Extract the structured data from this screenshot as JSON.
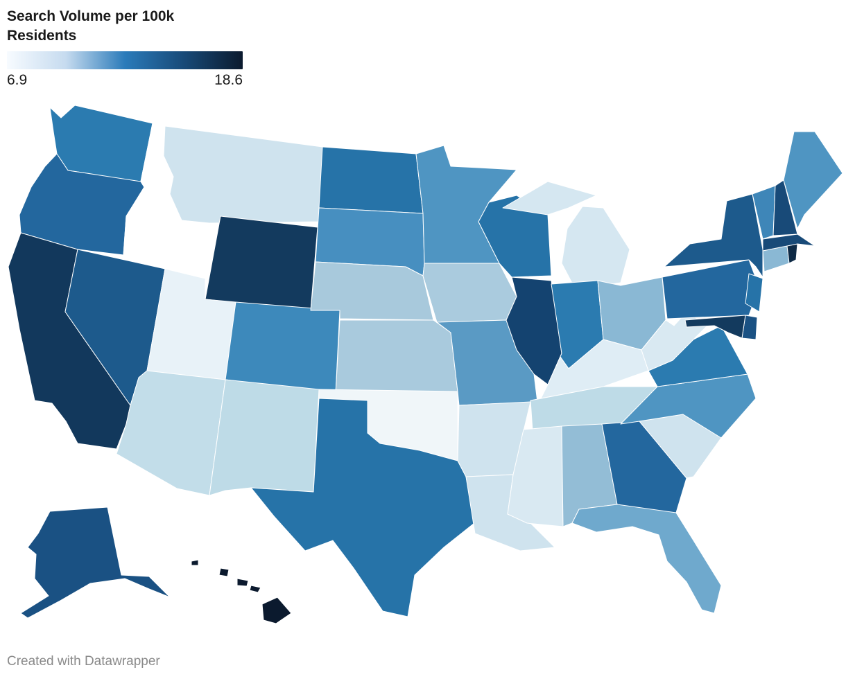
{
  "legend": {
    "title": "Search Volume per 100k Residents",
    "min_label": "6.9",
    "max_label": "18.6",
    "gradient": [
      "#f7fbff",
      "#c6dbef",
      "#2b7bba",
      "#184a78",
      "#0b1a2e"
    ]
  },
  "credit": "Created with Datawrapper",
  "colors": {
    "WA": "#2b7bb0",
    "OR": "#23679e",
    "CA": "#12385c",
    "ID": "#ffffff",
    "NV": "#1d5a8c",
    "MT": "#cfe3ee",
    "WY": "#133a5e",
    "UT": "#e8f2f8",
    "AZ": "#c2dde9",
    "CO": "#3d89bb",
    "NM": "#bedbe7",
    "ND": "#2673a8",
    "SD": "#478fc0",
    "NE": "#a8c9dc",
    "KS": "#a9cadd",
    "OK": "#f0f6f9",
    "TX": "#2673a8",
    "MN": "#4f95c2",
    "IA": "#aacbde",
    "MO": "#5a9ac4",
    "AR": "#cfe3ee",
    "LA": "#cfe3ee",
    "WI": "#2673a8",
    "IL": "#144370",
    "MI": "#d5e7f1",
    "IN": "#2b7bb0",
    "OH": "#8ab8d4",
    "KY": "#dfedf5",
    "TN": "#bedbe7",
    "MS": "#d9e9f2",
    "AL": "#93bdd6",
    "GA": "#23679e",
    "FL": "#6fa9cd",
    "SC": "#cfe3ee",
    "NC": "#4f95c2",
    "VA": "#2b7bb0",
    "WV": "#d9e9f2",
    "PA": "#23679e",
    "NY": "#1d5a8c",
    "NJ": "#2673a8",
    "DE": "#1a5183",
    "MD": "#133a5e",
    "CT": "#8ab8d4",
    "RI": "#0e2a46",
    "MA": "#184a78",
    "VT": "#3e86b8",
    "NH": "#184a78",
    "ME": "#4f95c2",
    "AK": "#1a5183",
    "HI": "#0b1a2e"
  }
}
